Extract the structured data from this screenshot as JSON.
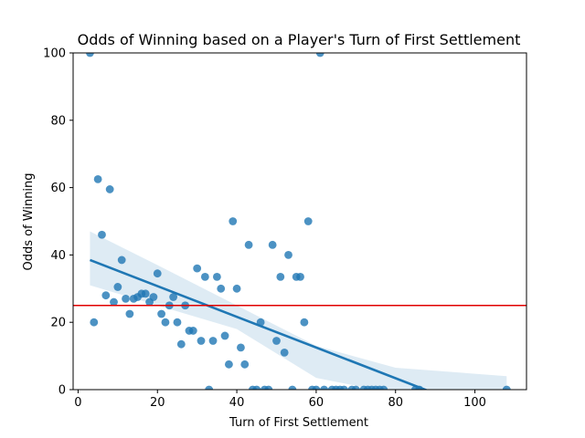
{
  "chart_data": {
    "type": "scatter",
    "title": "Odds of Winning based on a Player's Turn of First Settlement",
    "xlabel": "Turn of First Settlement",
    "ylabel": "Odds of Winning",
    "xlim": [
      -1.25,
      113
    ],
    "ylim": [
      0,
      100
    ],
    "xticks": [
      0,
      20,
      40,
      60,
      80,
      100
    ],
    "yticks": [
      0,
      20,
      40,
      60,
      80,
      100
    ],
    "grid": false,
    "point_color": "#1f77b4",
    "reference_line": {
      "y": 25,
      "color": "#e00000"
    },
    "regression": {
      "x_start": 3,
      "y_start": 38.5,
      "x_end": 108,
      "slope": -0.456,
      "color": "#1f77b4",
      "ci_color": "#1f77b4",
      "ci_upper": [
        [
          3,
          47
        ],
        [
          20,
          37
        ],
        [
          40,
          25
        ],
        [
          60,
          13
        ],
        [
          80,
          6.5
        ],
        [
          108,
          4
        ]
      ],
      "ci_lower": [
        [
          3,
          31
        ],
        [
          20,
          25
        ],
        [
          40,
          18
        ],
        [
          60,
          3.5
        ],
        [
          75,
          0
        ],
        [
          108,
          0
        ]
      ]
    },
    "points": [
      [
        3,
        100
      ],
      [
        61,
        100
      ],
      [
        5,
        62.5
      ],
      [
        8,
        59.5
      ],
      [
        6,
        46
      ],
      [
        11,
        38.5
      ],
      [
        10,
        30.5
      ],
      [
        7,
        28
      ],
      [
        9,
        26
      ],
      [
        12,
        27
      ],
      [
        14,
        27
      ],
      [
        15,
        27.5
      ],
      [
        16,
        28.5
      ],
      [
        17,
        28.5
      ],
      [
        18,
        26
      ],
      [
        19,
        27.5
      ],
      [
        20,
        34.5
      ],
      [
        21,
        22.5
      ],
      [
        13,
        22.5
      ],
      [
        4,
        20
      ],
      [
        22,
        20
      ],
      [
        23,
        25
      ],
      [
        24,
        27.5
      ],
      [
        25,
        20
      ],
      [
        26,
        13.5
      ],
      [
        27,
        25
      ],
      [
        28,
        17.5
      ],
      [
        29,
        17.5
      ],
      [
        30,
        36
      ],
      [
        31,
        14.5
      ],
      [
        32,
        33.5
      ],
      [
        33,
        0
      ],
      [
        34,
        14.5
      ],
      [
        35,
        33.5
      ],
      [
        36,
        30
      ],
      [
        37,
        16
      ],
      [
        38,
        7.5
      ],
      [
        39,
        50
      ],
      [
        40,
        30
      ],
      [
        41,
        12.5
      ],
      [
        42,
        7.5
      ],
      [
        43,
        43
      ],
      [
        44,
        0
      ],
      [
        45,
        0
      ],
      [
        46,
        20
      ],
      [
        47,
        0
      ],
      [
        48,
        0
      ],
      [
        49,
        43
      ],
      [
        50,
        14.5
      ],
      [
        51,
        33.5
      ],
      [
        52,
        11
      ],
      [
        53,
        40
      ],
      [
        54,
        0
      ],
      [
        55,
        33.5
      ],
      [
        56,
        33.5
      ],
      [
        57,
        20
      ],
      [
        58,
        50
      ],
      [
        59,
        0
      ],
      [
        60,
        0
      ],
      [
        62,
        0
      ],
      [
        64,
        0
      ],
      [
        65,
        0
      ],
      [
        66,
        0
      ],
      [
        67,
        0
      ],
      [
        69,
        0
      ],
      [
        70,
        0
      ],
      [
        72,
        0
      ],
      [
        73,
        0
      ],
      [
        74,
        0
      ],
      [
        75,
        0
      ],
      [
        76,
        0
      ],
      [
        77,
        0
      ],
      [
        85,
        0
      ],
      [
        86,
        0
      ],
      [
        108,
        0
      ]
    ]
  }
}
